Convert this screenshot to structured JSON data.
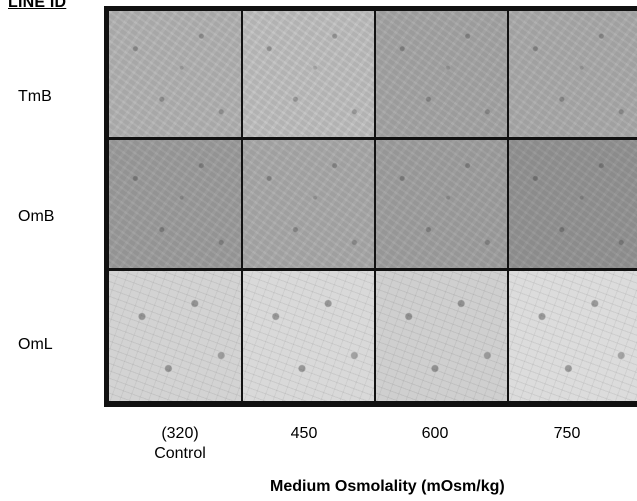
{
  "header": "LINE ID",
  "rows": [
    {
      "label": "TmB"
    },
    {
      "label": "OmB"
    },
    {
      "label": "OmL"
    }
  ],
  "columns": [
    {
      "line1": "(320)",
      "line2": "Control"
    },
    {
      "line1": "450",
      "line2": ""
    },
    {
      "line1": "600",
      "line2": ""
    },
    {
      "line1": "750",
      "line2": ""
    }
  ],
  "xlabel": "Medium Osmolality (mOsm/kg)",
  "colors": {
    "grid_border": "#111111",
    "background": "#ffffff"
  }
}
